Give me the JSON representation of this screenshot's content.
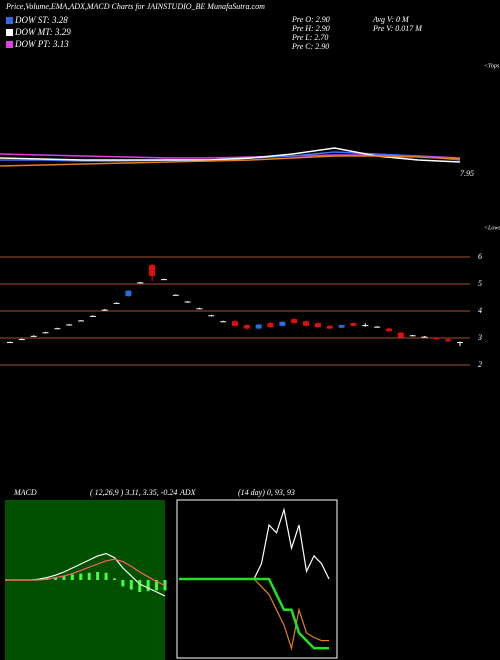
{
  "chart_data": [
    {
      "type": "candlestick",
      "title": "Price,Volume,EMA,ADX,MACD Charts for JAINSTUDIO_BE MunafaSutra.com",
      "legend": [
        {
          "name": "DOW ST: 3.28",
          "color": "#2a6be6"
        },
        {
          "name": "DOW MT: 3.29",
          "color": "#ffffff"
        },
        {
          "name": "DOW PT: 3.13",
          "color": "#e040e0"
        }
      ],
      "info": [
        "Pre  O: 2.90",
        "Pre  H: 2.90",
        "Pre  L: 2.70",
        "Pre  C: 2.90",
        "Avg  V: 0  M",
        "Pre  V: 0.017 M"
      ],
      "tops_label": "<Tops",
      "lows_label": "<Lows",
      "ylim": [
        1,
        7
      ],
      "yticks": [
        6,
        5,
        4,
        3,
        2
      ],
      "grid_color": "#a0522d",
      "up_color": "#2a6be6",
      "down_color": "#e01010",
      "flat_color": "#ffffff",
      "open": [
        2.85,
        2.96,
        3.08,
        3.21,
        3.36,
        3.5,
        3.65,
        3.82,
        4.05,
        4.3,
        4.55,
        5.06,
        5.7,
        5.18,
        4.6,
        4.35,
        4.1,
        3.84,
        3.62,
        3.62,
        3.48,
        3.35,
        3.55,
        3.45,
        3.7,
        3.62,
        3.55,
        3.45,
        3.38,
        3.55,
        3.48,
        3.42,
        3.35,
        3.2,
        3.1,
        3.05,
        3.02,
        2.95,
        2.85
      ],
      "close": [
        2.85,
        2.96,
        3.08,
        3.21,
        3.36,
        3.5,
        3.65,
        3.82,
        4.05,
        4.3,
        4.75,
        5.06,
        5.3,
        5.18,
        4.6,
        4.35,
        4.1,
        3.84,
        3.62,
        3.45,
        3.35,
        3.5,
        3.4,
        3.6,
        3.55,
        3.45,
        3.4,
        3.35,
        3.48,
        3.45,
        3.48,
        3.42,
        3.25,
        3.02,
        3.1,
        3.05,
        2.95,
        2.88,
        2.85
      ],
      "high": [
        2.87,
        2.98,
        3.1,
        3.23,
        3.38,
        3.52,
        3.67,
        3.84,
        4.07,
        4.32,
        4.77,
        5.08,
        5.75,
        5.2,
        4.62,
        4.37,
        4.12,
        3.86,
        3.64,
        3.66,
        3.5,
        3.52,
        3.6,
        3.62,
        3.72,
        3.65,
        3.57,
        3.47,
        3.5,
        3.58,
        3.55,
        3.44,
        3.37,
        3.22,
        3.12,
        3.07,
        3.04,
        2.97,
        2.87
      ],
      "low": [
        2.83,
        2.94,
        3.06,
        3.19,
        3.34,
        3.48,
        3.63,
        3.8,
        4.03,
        4.28,
        4.53,
        5.04,
        5.1,
        5.16,
        4.58,
        4.33,
        4.08,
        3.82,
        3.6,
        3.42,
        3.3,
        3.32,
        3.38,
        3.43,
        3.53,
        3.42,
        3.38,
        3.33,
        3.36,
        3.44,
        3.42,
        3.4,
        3.23,
        3.0,
        3.08,
        3.03,
        2.93,
        2.86,
        2.7
      ]
    },
    {
      "type": "line",
      "ylim": [
        7.92,
        8.12
      ],
      "yticks": [
        7.95
      ],
      "series": [
        {
          "name": "EMA long",
          "color": "#e040e0",
          "values": [
            8.05,
            8.045,
            8.04,
            8.035,
            8.03,
            8.03,
            8.035,
            8.04,
            8.045,
            8.045,
            8.04,
            8.03
          ]
        },
        {
          "name": "EMA short",
          "color": "#4070ff",
          "values": [
            8.02,
            8.02,
            8.015,
            8.015,
            8.02,
            8.02,
            8.03,
            8.04,
            8.06,
            8.05,
            8.04,
            8.02
          ]
        },
        {
          "name": "EMA fast",
          "color": "#ffffff",
          "values": [
            8.03,
            8.025,
            8.02,
            8.02,
            8.02,
            8.02,
            8.03,
            8.05,
            8.08,
            8.04,
            8.02,
            8.01
          ]
        },
        {
          "name": "EMA mid",
          "color": "#e08020",
          "values": [
            7.99,
            7.995,
            8.0,
            8.005,
            8.01,
            8.015,
            8.02,
            8.03,
            8.04,
            8.04,
            8.035,
            8.025
          ]
        }
      ]
    },
    {
      "type": "macd",
      "title": "MACD",
      "subtitle": "( 12,26,9 ) 3.11,  3.35,  -0.24",
      "ylim": [
        -1,
        1
      ],
      "bg": "#005000",
      "hist_color": "#40ff40",
      "series": [
        {
          "name": "MACD",
          "color": "#ffffff",
          "values": [
            0,
            0,
            0,
            0,
            0.01,
            0.03,
            0.06,
            0.1,
            0.15,
            0.2,
            0.25,
            0.3,
            0.33,
            0.28,
            0.15,
            0.05,
            -0.05,
            -0.1,
            -0.15,
            -0.2
          ]
        },
        {
          "name": "Signal",
          "color": "#ff6060",
          "values": [
            0,
            0,
            0,
            0,
            0,
            0.01,
            0.03,
            0.05,
            0.08,
            0.12,
            0.16,
            0.2,
            0.24,
            0.26,
            0.23,
            0.17,
            0.1,
            0.04,
            -0.02,
            -0.07
          ]
        }
      ],
      "histogram": [
        0,
        0,
        0,
        0,
        0.01,
        0.02,
        0.03,
        0.05,
        0.07,
        0.08,
        0.09,
        0.1,
        0.09,
        0.02,
        -0.08,
        -0.12,
        -0.15,
        -0.14,
        -0.13,
        -0.13
      ]
    },
    {
      "type": "adx",
      "title": "ADX",
      "subtitle": "(14  day) 0,  93,  93",
      "ylim": [
        0,
        100
      ],
      "series": [
        {
          "name": "ADX",
          "color": "#ffffff",
          "values": [
            50,
            50,
            50,
            50,
            50,
            50,
            50,
            50,
            50,
            50,
            50,
            60,
            85,
            80,
            95,
            70,
            85,
            55,
            65,
            60,
            50
          ]
        },
        {
          "name": "-DI",
          "color": "#e08020",
          "values": [
            50,
            50,
            50,
            50,
            50,
            50,
            50,
            50,
            50,
            50,
            50,
            45,
            40,
            30,
            20,
            5,
            30,
            15,
            12,
            10,
            10
          ]
        },
        {
          "name": "+DI",
          "color": "#20e020",
          "values": [
            50,
            50,
            50,
            50,
            50,
            50,
            50,
            50,
            50,
            50,
            50,
            50,
            50,
            40,
            30,
            30,
            15,
            10,
            5,
            5,
            5
          ]
        }
      ]
    }
  ]
}
